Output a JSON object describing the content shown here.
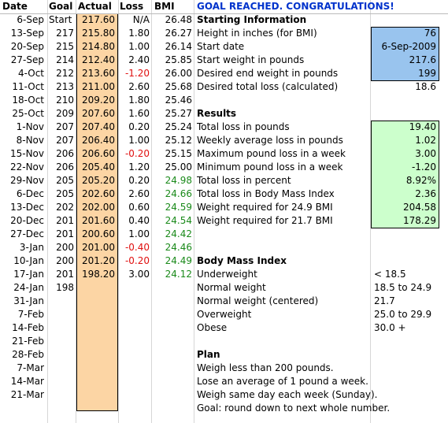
{
  "header": {
    "date": "Date",
    "goal": "Goal",
    "actual": "Actual",
    "loss": "Loss",
    "bmi": "BMI",
    "congrats": "GOAL REACHED. CONGRATULATIONS!"
  },
  "log": [
    {
      "date": "6-Sep",
      "goal": "Start",
      "actual": "217.60",
      "loss": "N/A",
      "bmi": "26.48",
      "loss_neg": false,
      "bmi_ok": false
    },
    {
      "date": "13-Sep",
      "goal": "217",
      "actual": "215.80",
      "loss": "1.80",
      "bmi": "26.27",
      "loss_neg": false,
      "bmi_ok": false
    },
    {
      "date": "20-Sep",
      "goal": "215",
      "actual": "214.80",
      "loss": "1.00",
      "bmi": "26.14",
      "loss_neg": false,
      "bmi_ok": false
    },
    {
      "date": "27-Sep",
      "goal": "214",
      "actual": "212.40",
      "loss": "2.40",
      "bmi": "25.85",
      "loss_neg": false,
      "bmi_ok": false
    },
    {
      "date": "4-Oct",
      "goal": "212",
      "actual": "213.60",
      "loss": "-1.20",
      "bmi": "26.00",
      "loss_neg": true,
      "bmi_ok": false
    },
    {
      "date": "11-Oct",
      "goal": "213",
      "actual": "211.00",
      "loss": "2.60",
      "bmi": "25.68",
      "loss_neg": false,
      "bmi_ok": false
    },
    {
      "date": "18-Oct",
      "goal": "210",
      "actual": "209.20",
      "loss": "1.80",
      "bmi": "25.46",
      "loss_neg": false,
      "bmi_ok": false
    },
    {
      "date": "25-Oct",
      "goal": "209",
      "actual": "207.60",
      "loss": "1.60",
      "bmi": "25.27",
      "loss_neg": false,
      "bmi_ok": false
    },
    {
      "date": "1-Nov",
      "goal": "207",
      "actual": "207.40",
      "loss": "0.20",
      "bmi": "25.24",
      "loss_neg": false,
      "bmi_ok": false
    },
    {
      "date": "8-Nov",
      "goal": "207",
      "actual": "206.40",
      "loss": "1.00",
      "bmi": "25.12",
      "loss_neg": false,
      "bmi_ok": false
    },
    {
      "date": "15-Nov",
      "goal": "206",
      "actual": "206.60",
      "loss": "-0.20",
      "bmi": "25.15",
      "loss_neg": true,
      "bmi_ok": false
    },
    {
      "date": "22-Nov",
      "goal": "206",
      "actual": "205.40",
      "loss": "1.20",
      "bmi": "25.00",
      "loss_neg": false,
      "bmi_ok": false
    },
    {
      "date": "29-Nov",
      "goal": "205",
      "actual": "205.20",
      "loss": "0.20",
      "bmi": "24.98",
      "loss_neg": false,
      "bmi_ok": true
    },
    {
      "date": "6-Dec",
      "goal": "205",
      "actual": "202.60",
      "loss": "2.60",
      "bmi": "24.66",
      "loss_neg": false,
      "bmi_ok": true
    },
    {
      "date": "13-Dec",
      "goal": "202",
      "actual": "202.00",
      "loss": "0.60",
      "bmi": "24.59",
      "loss_neg": false,
      "bmi_ok": true
    },
    {
      "date": "20-Dec",
      "goal": "201",
      "actual": "201.60",
      "loss": "0.40",
      "bmi": "24.54",
      "loss_neg": false,
      "bmi_ok": true
    },
    {
      "date": "27-Dec",
      "goal": "201",
      "actual": "200.60",
      "loss": "1.00",
      "bmi": "24.42",
      "loss_neg": false,
      "bmi_ok": true
    },
    {
      "date": "3-Jan",
      "goal": "200",
      "actual": "201.00",
      "loss": "-0.40",
      "bmi": "24.46",
      "loss_neg": true,
      "bmi_ok": true
    },
    {
      "date": "10-Jan",
      "goal": "200",
      "actual": "201.20",
      "loss": "-0.20",
      "bmi": "24.49",
      "loss_neg": true,
      "bmi_ok": true
    },
    {
      "date": "17-Jan",
      "goal": "201",
      "actual": "198.20",
      "loss": "3.00",
      "bmi": "24.12",
      "loss_neg": false,
      "bmi_ok": true
    },
    {
      "date": "24-Jan",
      "goal": "198",
      "actual": "",
      "loss": "",
      "bmi": "",
      "loss_neg": false,
      "bmi_ok": false
    },
    {
      "date": "31-Jan",
      "goal": "",
      "actual": "",
      "loss": "",
      "bmi": "",
      "loss_neg": false,
      "bmi_ok": false
    },
    {
      "date": "7-Feb",
      "goal": "",
      "actual": "",
      "loss": "",
      "bmi": "",
      "loss_neg": false,
      "bmi_ok": false
    },
    {
      "date": "14-Feb",
      "goal": "",
      "actual": "",
      "loss": "",
      "bmi": "",
      "loss_neg": false,
      "bmi_ok": false
    },
    {
      "date": "21-Feb",
      "goal": "",
      "actual": "",
      "loss": "",
      "bmi": "",
      "loss_neg": false,
      "bmi_ok": false
    },
    {
      "date": "28-Feb",
      "goal": "",
      "actual": "",
      "loss": "",
      "bmi": "",
      "loss_neg": false,
      "bmi_ok": false
    },
    {
      "date": "7-Mar",
      "goal": "",
      "actual": "",
      "loss": "",
      "bmi": "",
      "loss_neg": false,
      "bmi_ok": false
    },
    {
      "date": "14-Mar",
      "goal": "",
      "actual": "",
      "loss": "",
      "bmi": "",
      "loss_neg": false,
      "bmi_ok": false
    },
    {
      "date": "21-Mar",
      "goal": "",
      "actual": "",
      "loss": "",
      "bmi": "",
      "loss_neg": false,
      "bmi_ok": false
    }
  ],
  "starting": {
    "title": "Starting Information",
    "rows": [
      {
        "label": "Height in inches (for BMI)",
        "value": "76"
      },
      {
        "label": "Start date",
        "value": "6-Sep-2009"
      },
      {
        "label": "Start weight in pounds",
        "value": "217.6"
      },
      {
        "label": "Desired end weight in pounds",
        "value": "199"
      },
      {
        "label": "Desired total loss (calculated)",
        "value": "18.6"
      }
    ]
  },
  "results": {
    "title": "Results",
    "rows": [
      {
        "label": "Total loss in pounds",
        "value": "19.40"
      },
      {
        "label": "Weekly average loss in pounds",
        "value": "1.02"
      },
      {
        "label": "Maximum pound loss in a week",
        "value": "3.00"
      },
      {
        "label": "Minimum pound loss in a week",
        "value": "-1.20"
      },
      {
        "label": "Total loss in percent",
        "value": "8.92%"
      },
      {
        "label": "Total loss in Body Mass Index",
        "value": "2.36"
      },
      {
        "label": "Weight required for 24.9 BMI",
        "value": "204.58"
      },
      {
        "label": "Weight required for 21.7 BMI",
        "value": "178.29"
      }
    ]
  },
  "bmi_ranges": {
    "title": "Body Mass Index",
    "rows": [
      {
        "label": "Underweight",
        "value": "< 18.5"
      },
      {
        "label": "Normal weight",
        "value": "18.5 to 24.9"
      },
      {
        "label": "Normal weight (centered)",
        "value": "21.7"
      },
      {
        "label": "Overweight",
        "value": "25.0 to 29.9"
      },
      {
        "label": "Obese",
        "value": "30.0 +"
      }
    ]
  },
  "plan": {
    "title": "Plan",
    "items": [
      "Weigh less than 200 pounds.",
      "Lose an average of 1 pound a week.",
      "Weigh same day each week (Sunday).",
      "Goal: round down to next whole number."
    ]
  },
  "colors": {
    "actual_fill": "#fcd5a4",
    "input_fill": "#99c4ee",
    "result_fill": "#ccffcc",
    "negative": "#e01010",
    "bmi_normal": "#1a8a1a",
    "congrats": "#0033cc"
  }
}
